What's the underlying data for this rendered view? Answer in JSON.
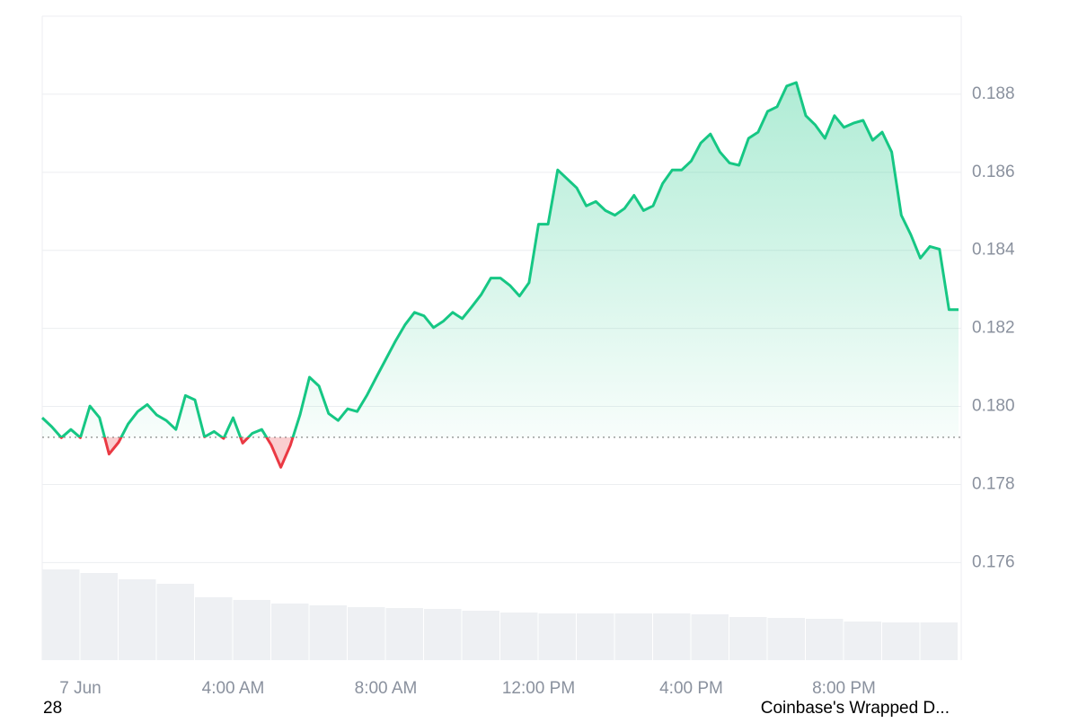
{
  "chart_data": {
    "type": "line",
    "series": [
      {
        "name": "Price",
        "color": "#16c784",
        "below_color": "#ea3943",
        "values": [
          0.17971,
          0.17948,
          0.1792,
          0.17941,
          0.1792,
          0.18001,
          0.17971,
          0.17878,
          0.17908,
          0.17955,
          0.17987,
          0.18005,
          0.17978,
          0.17964,
          0.17941,
          0.18028,
          0.18017,
          0.17922,
          0.17936,
          0.17918,
          0.17971,
          0.17906,
          0.17931,
          0.17941,
          0.17901,
          0.17844,
          0.17901,
          0.17978,
          0.18075,
          0.18052,
          0.17982,
          0.17964,
          0.17994,
          0.17987,
          0.18028,
          0.18075,
          0.18121,
          0.18167,
          0.18209,
          0.18241,
          0.18232,
          0.18202,
          0.18218,
          0.18241,
          0.18225,
          0.18255,
          0.18287,
          0.18329,
          0.18329,
          0.1831,
          0.18283,
          0.18317,
          0.18467,
          0.18467,
          0.18606,
          0.18583,
          0.1856,
          0.18514,
          0.18525,
          0.18502,
          0.1849,
          0.18507,
          0.18541,
          0.18502,
          0.18514,
          0.18571,
          0.18606,
          0.18606,
          0.18629,
          0.18675,
          0.18698,
          0.18652,
          0.18624,
          0.18618,
          0.18687,
          0.18703,
          0.18756,
          0.18768,
          0.18821,
          0.1883,
          0.18745,
          0.18721,
          0.18687,
          0.18745,
          0.18715,
          0.18726,
          0.18733,
          0.18682,
          0.18703,
          0.18652,
          0.1849,
          0.1844,
          0.1838,
          0.1841,
          0.18403,
          0.18248,
          0.18248
        ]
      }
    ],
    "baseline": 0.17921,
    "volume": {
      "color": "#eef0f3",
      "values": [
        101,
        97,
        90,
        85,
        70,
        67,
        63,
        61,
        59,
        58,
        57,
        55,
        53,
        52,
        52,
        52,
        52,
        51,
        48,
        47,
        46,
        43,
        42,
        42
      ]
    },
    "xlim": [
      0,
      96
    ],
    "xticks": [
      {
        "value": 4,
        "label": "7 Jun"
      },
      {
        "value": 20,
        "label": "4:00 AM"
      },
      {
        "value": 36,
        "label": "8:00 AM"
      },
      {
        "value": 52,
        "label": "12:00 PM"
      },
      {
        "value": 68,
        "label": "4:00 PM"
      },
      {
        "value": 84,
        "label": "8:00 PM"
      }
    ],
    "ylim": [
      0.1735,
      0.19
    ],
    "yticks": [
      0.176,
      0.178,
      {
        "value": 0.18,
        "label": "0.180"
      },
      0.182,
      0.184,
      0.186,
      0.188
    ],
    "grid": true,
    "footer_left": "28",
    "footer_right": "Coinbase's Wrapped D..."
  }
}
